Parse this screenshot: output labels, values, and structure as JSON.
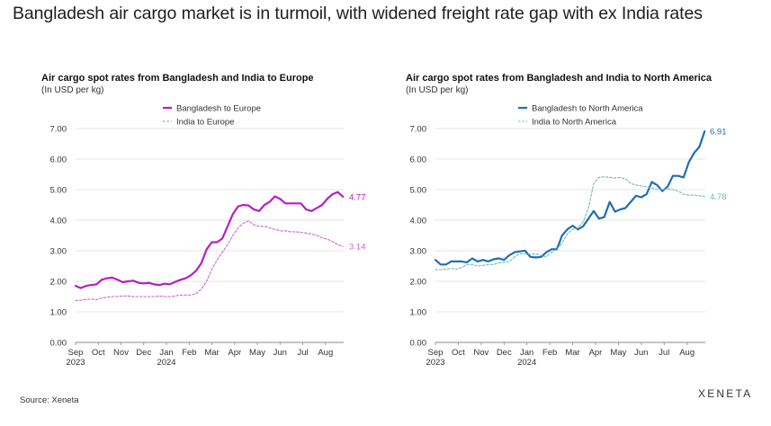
{
  "page": {
    "title": "Bangladesh air cargo market is in turmoil, with widened freight rate gap with ex India rates",
    "source": "Source: Xeneta",
    "logo": "XENETA"
  },
  "chart_data": [
    {
      "type": "line",
      "title": "Air cargo spot rates from Bangladesh and India to Europe",
      "subtitle": "(In USD per kg)",
      "ylim": [
        0,
        7
      ],
      "yticks": [
        "0.00",
        "1.00",
        "2.00",
        "3.00",
        "4.00",
        "5.00",
        "6.00",
        "7.00"
      ],
      "xticks": [
        {
          "label": "Sep",
          "sub": "2023"
        },
        {
          "label": "Oct"
        },
        {
          "label": "Nov"
        },
        {
          "label": "Dec"
        },
        {
          "label": "Jan",
          "sub": "2024"
        },
        {
          "label": "Feb"
        },
        {
          "label": "Mar"
        },
        {
          "label": "Apr"
        },
        {
          "label": "May"
        },
        {
          "label": "Jun"
        },
        {
          "label": "Jul"
        },
        {
          "label": "Aug"
        }
      ],
      "xlim": [
        0,
        11.8
      ],
      "legend_position": "top-center",
      "end_labels": [
        "4.77",
        "3.14"
      ],
      "series": [
        {
          "name": "Bangladesh to Europe",
          "color": "#b61fc2",
          "style": "solid",
          "x": [
            0,
            0.23,
            0.46,
            0.69,
            0.92,
            1.15,
            1.38,
            1.61,
            1.85,
            2.08,
            2.31,
            2.54,
            2.77,
            3,
            3.23,
            3.46,
            3.69,
            3.92,
            4.15,
            4.38,
            4.62,
            4.85,
            5.08,
            5.31,
            5.54,
            5.77,
            6,
            6.23,
            6.46,
            6.69,
            6.92,
            7.15,
            7.38,
            7.62,
            7.85,
            8.08,
            8.31,
            8.54,
            8.77,
            9,
            9.23,
            9.46,
            9.69,
            9.92,
            10.15,
            10.38,
            10.62,
            10.85,
            11.08,
            11.31,
            11.54,
            11.77
          ],
          "y": [
            1.85,
            1.78,
            1.85,
            1.88,
            1.9,
            2.05,
            2.1,
            2.12,
            2.05,
            1.97,
            2.0,
            2.02,
            1.95,
            1.93,
            1.95,
            1.9,
            1.88,
            1.92,
            1.9,
            1.98,
            2.05,
            2.1,
            2.2,
            2.35,
            2.6,
            3.05,
            3.28,
            3.28,
            3.4,
            3.8,
            4.2,
            4.45,
            4.5,
            4.48,
            4.35,
            4.3,
            4.5,
            4.6,
            4.78,
            4.7,
            4.55,
            4.55,
            4.55,
            4.55,
            4.35,
            4.3,
            4.4,
            4.5,
            4.7,
            4.85,
            4.92,
            4.77
          ]
        },
        {
          "name": "India to Europe",
          "color": "#cc66d0",
          "style": "dashed",
          "x": [
            0,
            0.23,
            0.46,
            0.69,
            0.92,
            1.15,
            1.38,
            1.61,
            1.85,
            2.08,
            2.31,
            2.54,
            2.77,
            3,
            3.23,
            3.46,
            3.69,
            3.92,
            4.15,
            4.38,
            4.62,
            4.85,
            5.08,
            5.31,
            5.54,
            5.77,
            6,
            6.23,
            6.46,
            6.69,
            6.92,
            7.15,
            7.38,
            7.62,
            7.85,
            8.08,
            8.31,
            8.54,
            8.77,
            9,
            9.23,
            9.46,
            9.69,
            9.92,
            10.15,
            10.38,
            10.62,
            10.85,
            11.08,
            11.31,
            11.54,
            11.77
          ],
          "y": [
            1.37,
            1.38,
            1.4,
            1.42,
            1.4,
            1.45,
            1.48,
            1.5,
            1.5,
            1.52,
            1.52,
            1.5,
            1.5,
            1.5,
            1.5,
            1.5,
            1.52,
            1.5,
            1.5,
            1.52,
            1.55,
            1.55,
            1.55,
            1.6,
            1.75,
            2.0,
            2.4,
            2.7,
            2.95,
            3.2,
            3.5,
            3.75,
            3.9,
            3.98,
            3.85,
            3.8,
            3.8,
            3.75,
            3.7,
            3.65,
            3.65,
            3.62,
            3.62,
            3.6,
            3.58,
            3.55,
            3.5,
            3.42,
            3.38,
            3.3,
            3.2,
            3.14
          ]
        }
      ]
    },
    {
      "type": "line",
      "title": "Air cargo spot rates from Bangladesh and India to North America",
      "subtitle": "(In USD per kg)",
      "ylim": [
        0,
        7
      ],
      "yticks": [
        "0.00",
        "1.00",
        "2.00",
        "3.00",
        "4.00",
        "5.00",
        "6.00",
        "7.00"
      ],
      "xticks": [
        {
          "label": "Sep",
          "sub": "2023"
        },
        {
          "label": "Oct"
        },
        {
          "label": "Nov"
        },
        {
          "label": "Dec"
        },
        {
          "label": "Jan",
          "sub": "2024"
        },
        {
          "label": "Feb"
        },
        {
          "label": "Mar"
        },
        {
          "label": "Apr"
        },
        {
          "label": "May"
        },
        {
          "label": "Jun"
        },
        {
          "label": "Jul"
        },
        {
          "label": "Aug"
        }
      ],
      "xlim": [
        0,
        11.8
      ],
      "legend_position": "top-center",
      "end_labels": [
        "6.91",
        "4.78"
      ],
      "series": [
        {
          "name": "Bangladesh to North America",
          "color": "#1f6eb5",
          "style": "solid",
          "x": [
            0,
            0.23,
            0.46,
            0.69,
            0.92,
            1.15,
            1.38,
            1.61,
            1.85,
            2.08,
            2.31,
            2.54,
            2.77,
            3,
            3.23,
            3.46,
            3.69,
            3.92,
            4.15,
            4.38,
            4.62,
            4.85,
            5.08,
            5.31,
            5.54,
            5.77,
            6,
            6.23,
            6.46,
            6.69,
            6.92,
            7.15,
            7.38,
            7.62,
            7.85,
            8.08,
            8.31,
            8.54,
            8.77,
            9,
            9.23,
            9.46,
            9.69,
            9.92,
            10.15,
            10.38,
            10.62,
            10.85,
            11.08,
            11.31,
            11.54,
            11.77
          ],
          "y": [
            2.7,
            2.55,
            2.55,
            2.65,
            2.65,
            2.65,
            2.62,
            2.75,
            2.65,
            2.7,
            2.65,
            2.72,
            2.75,
            2.7,
            2.85,
            2.95,
            2.98,
            3.0,
            2.8,
            2.78,
            2.8,
            2.95,
            3.05,
            3.05,
            3.5,
            3.7,
            3.82,
            3.7,
            3.8,
            4.05,
            4.3,
            4.05,
            4.1,
            4.6,
            4.28,
            4.35,
            4.4,
            4.6,
            4.8,
            4.75,
            4.85,
            5.25,
            5.15,
            4.95,
            5.1,
            5.45,
            5.45,
            5.4,
            5.9,
            6.2,
            6.4,
            6.91
          ]
        },
        {
          "name": "India to North America",
          "color": "#6fb8b0",
          "style": "dashed",
          "x": [
            0,
            0.23,
            0.46,
            0.69,
            0.92,
            1.15,
            1.38,
            1.61,
            1.85,
            2.08,
            2.31,
            2.54,
            2.77,
            3,
            3.23,
            3.46,
            3.69,
            3.92,
            4.15,
            4.38,
            4.62,
            4.85,
            5.08,
            5.31,
            5.54,
            5.77,
            6,
            6.23,
            6.46,
            6.69,
            6.92,
            7.15,
            7.38,
            7.62,
            7.85,
            8.08,
            8.31,
            8.54,
            8.77,
            9,
            9.23,
            9.46,
            9.69,
            9.92,
            10.15,
            10.38,
            10.62,
            10.85,
            11.08,
            11.31,
            11.54,
            11.77
          ],
          "y": [
            2.38,
            2.38,
            2.4,
            2.42,
            2.4,
            2.45,
            2.55,
            2.55,
            2.5,
            2.52,
            2.55,
            2.55,
            2.6,
            2.62,
            2.65,
            2.8,
            2.9,
            2.9,
            2.88,
            2.9,
            2.85,
            2.8,
            2.95,
            3.05,
            3.25,
            3.55,
            3.7,
            3.75,
            3.95,
            4.4,
            5.2,
            5.4,
            5.42,
            5.4,
            5.38,
            5.4,
            5.35,
            5.2,
            5.15,
            5.12,
            5.1,
            5.05,
            5.0,
            5.0,
            5.02,
            5.0,
            4.95,
            4.85,
            4.82,
            4.82,
            4.8,
            4.78
          ]
        }
      ]
    }
  ]
}
